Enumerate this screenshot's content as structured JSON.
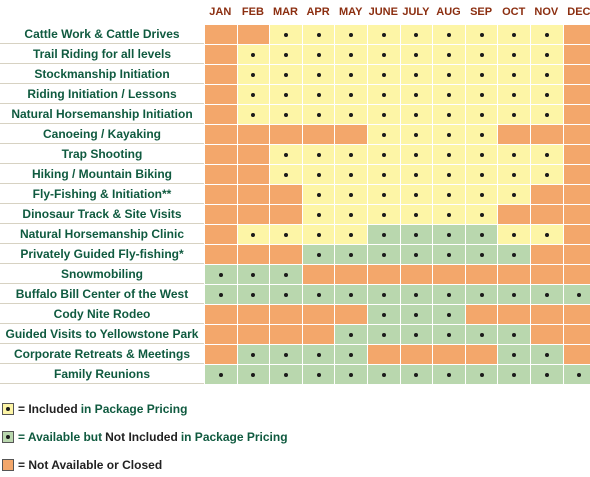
{
  "colors": {
    "included": "#fdf5a6",
    "available": "#b9d7ae",
    "closed": "#f3a76b",
    "header_text": "#8b2e10",
    "label_text": "#0f5a3f"
  },
  "months": [
    "JAN",
    "FEB",
    "MAR",
    "APR",
    "MAY",
    "JUNE",
    "JULY",
    "AUG",
    "SEP",
    "OCT",
    "NOV",
    "DEC"
  ],
  "codes": {
    "Y": "included",
    "G": "available",
    "O": "closed"
  },
  "activities": [
    {
      "name": "Cattle Work & Cattle Drives",
      "cells": "OOYYYYYYYYYO"
    },
    {
      "name": "Trail Riding for all levels",
      "cells": "OYYYYYYYYYYO"
    },
    {
      "name": "Stockmanship Initiation",
      "cells": "OYYYYYYYYYYO"
    },
    {
      "name": "Riding Initiation / Lessons",
      "cells": "OYYYYYYYYYYO"
    },
    {
      "name": "Natural Horsemanship Initiation",
      "cells": "OYYYYYYYYYYO"
    },
    {
      "name": "Canoeing / Kayaking",
      "cells": "OOOOOYYYYOOO"
    },
    {
      "name": "Trap Shooting",
      "cells": "OOYYYYYYYYYO"
    },
    {
      "name": "Hiking / Mountain Biking",
      "cells": "OOYYYYYYYYYO"
    },
    {
      "name": "Fly-Fishing & Initiation**",
      "cells": "OOOYYYYYYYOO"
    },
    {
      "name": "Dinosaur Track & Site Visits",
      "cells": "OOOYYYYYYOOO"
    },
    {
      "name": "Natural Horsemanship Clinic",
      "cells": "OYYYYGGGGYYO"
    },
    {
      "name": "Privately Guided Fly-fishing*",
      "cells": "OOOGGGGGGGOO"
    },
    {
      "name": "Snowmobiling",
      "cells": "GGGOOOOOOOOO"
    },
    {
      "name": "Buffalo Bill Center of the West",
      "cells": "GGGGGGGGGGGG"
    },
    {
      "name": "Cody Nite Rodeo",
      "cells": "OOOOOGGGOOOO"
    },
    {
      "name": "Guided Visits to Yellowstone Park",
      "cells": "OOOOGGGGGGOO"
    },
    {
      "name": "Corporate Retreats & Meetings",
      "cells": "OGGGGOOOOGGO"
    },
    {
      "name": "Family Reunions",
      "cells": "GGGGGGGGGGGG"
    }
  ],
  "legend": {
    "included": {
      "prefix": "= Included ",
      "suffix": "in Package Pricing"
    },
    "available": {
      "prefix": "= Available but ",
      "bold": "Not Included ",
      "suffix": "in Package Pricing"
    },
    "closed": {
      "text": "= Not Available or Closed"
    }
  }
}
